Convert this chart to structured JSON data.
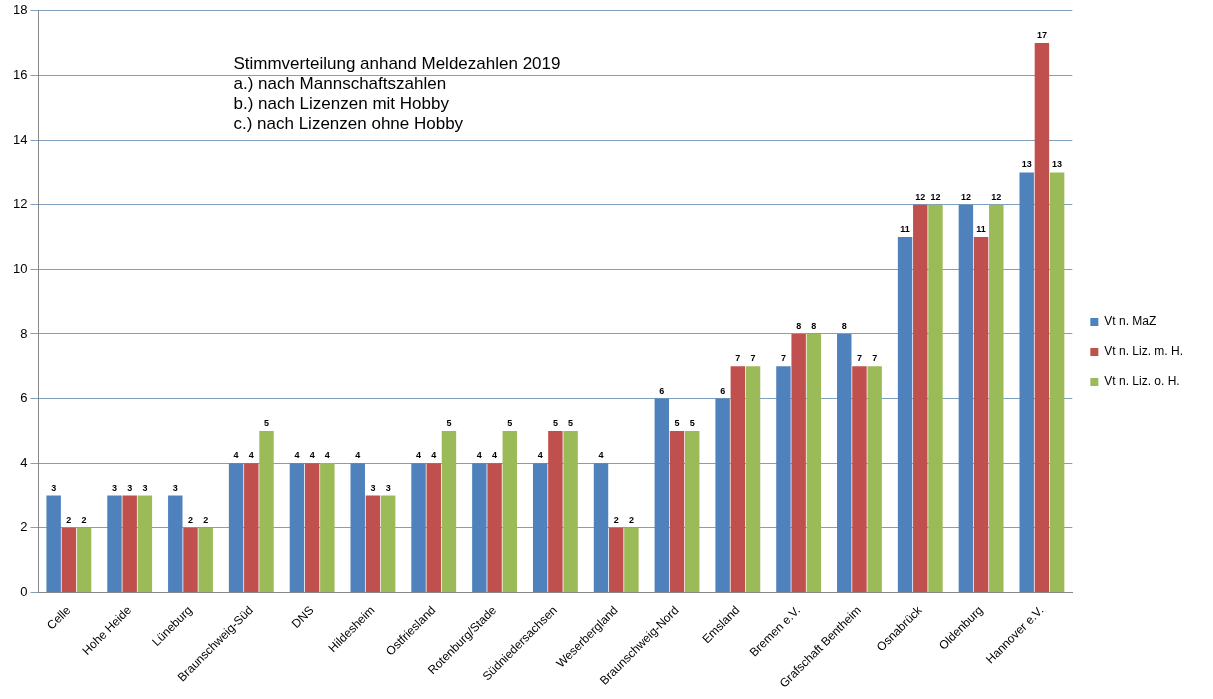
{
  "chart_data": {
    "type": "bar",
    "title": "Stimmverteilung anhand Meldezahlen 2019",
    "annotations": [
      "a.) nach Mannschaftszahlen",
      "b.) nach Lizenzen mit Hobby",
      "c.) nach Lizenzen ohne Hobby"
    ],
    "categories": [
      "Celle",
      "Hohe Heide",
      "Lüneburg",
      "Braunschweig-Süd",
      "DNS",
      "Hildesheim",
      "Ostfriesland",
      "Rotenburg/Stade",
      "Südniedersachsen",
      "Weserbergland",
      "Braunschweig-Nord",
      "Emsland",
      "Bremen e.V.",
      "Grafschaft Bentheim",
      "Osnabrück",
      "Oldenburg",
      "Hannover e.V."
    ],
    "series": [
      {
        "name": "Vt n. MaZ",
        "color": "#4f81bd",
        "values": [
          3,
          3,
          3,
          4,
          4,
          4,
          4,
          4,
          4,
          4,
          6,
          6,
          7,
          8,
          11,
          12,
          13
        ]
      },
      {
        "name": "Vt n. Liz. m. H.",
        "color": "#c0504d",
        "values": [
          2,
          3,
          2,
          4,
          4,
          3,
          4,
          4,
          5,
          2,
          5,
          7,
          8,
          7,
          12,
          11,
          17
        ]
      },
      {
        "name": "Vt n. Liz. o. H.",
        "color": "#9bbb59",
        "values": [
          2,
          3,
          2,
          5,
          4,
          3,
          5,
          5,
          5,
          2,
          5,
          7,
          8,
          7,
          12,
          12,
          13
        ]
      }
    ],
    "ylim": [
      0,
      18
    ],
    "yticks": [
      0,
      2,
      4,
      6,
      8,
      10,
      12,
      14,
      16,
      18
    ],
    "grid": "y",
    "legend": "right",
    "data_labels": true
  }
}
